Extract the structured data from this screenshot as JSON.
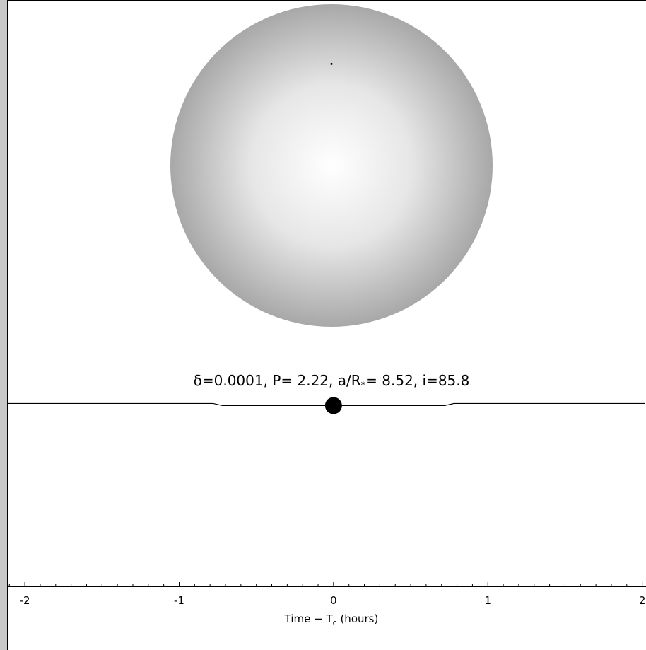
{
  "chart_data": {
    "type": "line",
    "title_parts": [
      "δ=0.0001, P= 2.22, a/R",
      "*",
      "= 8.52, i=85.8"
    ],
    "xlabel_parts": [
      "Time − T",
      "c",
      " (hours)"
    ],
    "x": [
      -2.115,
      -0.78,
      -0.72,
      0.72,
      0.78,
      2.02
    ],
    "values": [
      1,
      1,
      0.9999,
      0.9999,
      1,
      1
    ],
    "color": "#000000",
    "marker": {
      "x": 0,
      "y": 0.9999
    },
    "planet": {
      "x": 0,
      "y": 0.63
    },
    "xlim": [
      -2.115,
      2.02
    ],
    "ylim": [
      0.9914,
      1.007
    ],
    "xticks": [
      -2,
      -1,
      0,
      1,
      2
    ],
    "xminorticks": [
      -2.1,
      -1.9,
      -1.8,
      -1.7,
      -1.6,
      -1.5,
      -1.4,
      -1.3,
      -1.2,
      -1.1,
      -0.9,
      -0.8,
      -0.7,
      -0.6,
      -0.5,
      -0.4,
      -0.3,
      -0.2,
      -0.1,
      0.1,
      0.2,
      0.3,
      0.4,
      0.5,
      0.6,
      0.7,
      0.8,
      0.9,
      1.1,
      1.2,
      1.3,
      1.4,
      1.5,
      1.6,
      1.7,
      1.8,
      1.9
    ]
  }
}
